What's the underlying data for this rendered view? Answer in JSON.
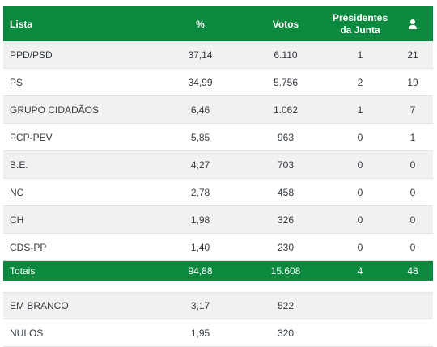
{
  "colors": {
    "header_bg": "#0b8a3f",
    "alt_row_bg": "#f1f1f1"
  },
  "header": {
    "list": "Lista",
    "pct": "%",
    "votes": "Votos",
    "presidents": "Presidentes\nda Junta",
    "seats_icon": "person-icon"
  },
  "rows": [
    {
      "name": "PPD/PSD",
      "pct": "37,14",
      "votes": "6.110",
      "pres": "1",
      "seats": "21"
    },
    {
      "name": "PS",
      "pct": "34,99",
      "votes": "5.756",
      "pres": "2",
      "seats": "19"
    },
    {
      "name": "GRUPO CIDADÃOS",
      "pct": "6,46",
      "votes": "1.062",
      "pres": "1",
      "seats": "7"
    },
    {
      "name": "PCP-PEV",
      "pct": "5,85",
      "votes": "963",
      "pres": "0",
      "seats": "1"
    },
    {
      "name": "B.E.",
      "pct": "4,27",
      "votes": "703",
      "pres": "0",
      "seats": "0"
    },
    {
      "name": "NC",
      "pct": "2,78",
      "votes": "458",
      "pres": "0",
      "seats": "0"
    },
    {
      "name": "CH",
      "pct": "1,98",
      "votes": "326",
      "pres": "0",
      "seats": "0"
    },
    {
      "name": "CDS-PP",
      "pct": "1,40",
      "votes": "230",
      "pres": "0",
      "seats": "0"
    }
  ],
  "totals": {
    "label": "Totais",
    "pct": "94,88",
    "votes": "15.608",
    "pres": "4",
    "seats": "48"
  },
  "extra": [
    {
      "name": "EM BRANCO",
      "pct": "3,17",
      "votes": "522"
    },
    {
      "name": "NULOS",
      "pct": "1,95",
      "votes": "320"
    }
  ]
}
